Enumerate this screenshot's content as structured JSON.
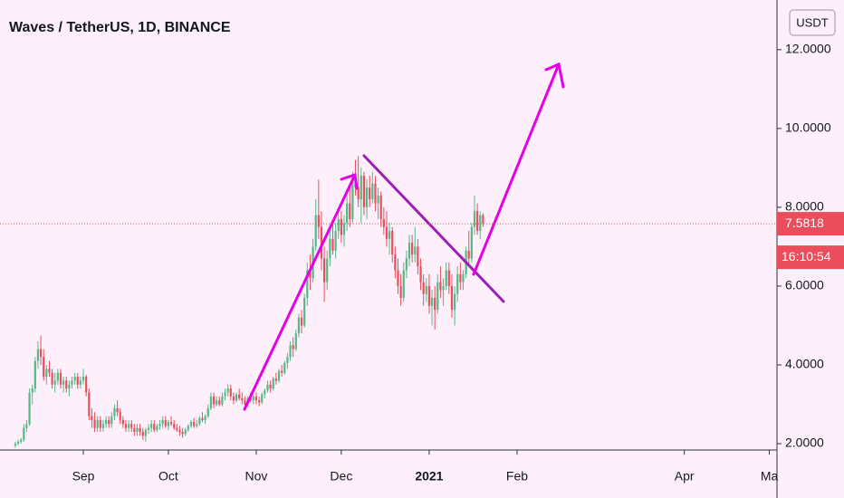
{
  "chart_data": {
    "type": "candlestick",
    "title": "Waves / TetherUS, 1D, BINANCE",
    "currency": "USDT",
    "last_price": 7.5818,
    "countdown": "16:10:54",
    "up_color": "#53b987",
    "down_color": "#eb4d5c",
    "xlim": [
      -5.4,
      268.7
    ],
    "xticks": [
      {
        "value": 24,
        "label": "Sep"
      },
      {
        "value": 54,
        "label": "Oct"
      },
      {
        "value": 85,
        "label": "Nov"
      },
      {
        "value": 115,
        "label": "Dec"
      },
      {
        "value": 146,
        "label": "2021"
      },
      {
        "value": 177,
        "label": "Feb"
      },
      {
        "value": 236,
        "label": "Apr"
      },
      {
        "value": 266,
        "label": "Ma"
      }
    ],
    "ylim": [
      1.84,
      13.26
    ],
    "yticks": [
      {
        "value": 2,
        "label": "2.0000"
      },
      {
        "value": 4,
        "label": "4.0000"
      },
      {
        "value": 6,
        "label": "6.0000"
      },
      {
        "value": 8,
        "label": "8.0000"
      },
      {
        "value": 10,
        "label": "10.0000"
      },
      {
        "value": 12,
        "label": "12.0000"
      }
    ],
    "candles": [
      [
        1.95,
        2.05,
        1.9,
        2.0
      ],
      [
        2.0,
        2.1,
        1.95,
        2.05
      ],
      [
        2.05,
        2.15,
        2.0,
        2.1
      ],
      [
        2.1,
        2.5,
        2.05,
        2.4
      ],
      [
        2.4,
        2.6,
        2.3,
        2.5
      ],
      [
        2.5,
        3.4,
        2.45,
        3.3
      ],
      [
        3.3,
        3.5,
        3.0,
        3.4
      ],
      [
        3.4,
        4.2,
        3.3,
        4.1
      ],
      [
        4.1,
        4.6,
        3.9,
        4.4
      ],
      [
        4.4,
        4.75,
        4.0,
        4.2
      ],
      [
        4.2,
        4.4,
        3.6,
        3.7
      ],
      [
        3.7,
        4.0,
        3.5,
        3.9
      ],
      [
        3.9,
        4.1,
        3.7,
        3.8
      ],
      [
        3.8,
        3.9,
        3.4,
        3.5
      ],
      [
        3.5,
        3.8,
        3.3,
        3.6
      ],
      [
        3.6,
        3.9,
        3.5,
        3.8
      ],
      [
        3.8,
        3.9,
        3.4,
        3.5
      ],
      [
        3.5,
        3.7,
        3.3,
        3.6
      ],
      [
        3.6,
        3.7,
        3.3,
        3.4
      ],
      [
        3.4,
        3.6,
        3.2,
        3.5
      ],
      [
        3.5,
        3.7,
        3.4,
        3.6
      ],
      [
        3.6,
        3.8,
        3.5,
        3.7
      ],
      [
        3.7,
        3.8,
        3.4,
        3.5
      ],
      [
        3.5,
        3.7,
        3.4,
        3.6
      ],
      [
        3.6,
        3.9,
        3.5,
        3.7
      ],
      [
        3.7,
        3.75,
        3.2,
        3.3
      ],
      [
        3.3,
        3.4,
        2.6,
        2.7
      ],
      [
        2.7,
        2.9,
        2.4,
        2.6
      ],
      [
        2.6,
        2.8,
        2.3,
        2.4
      ],
      [
        2.4,
        2.7,
        2.3,
        2.6
      ],
      [
        2.6,
        2.7,
        2.3,
        2.4
      ],
      [
        2.4,
        2.6,
        2.3,
        2.5
      ],
      [
        2.5,
        2.7,
        2.4,
        2.6
      ],
      [
        2.6,
        2.7,
        2.4,
        2.5
      ],
      [
        2.5,
        2.8,
        2.4,
        2.7
      ],
      [
        2.7,
        3.0,
        2.6,
        2.9
      ],
      [
        2.9,
        3.1,
        2.7,
        2.8
      ],
      [
        2.8,
        2.9,
        2.5,
        2.6
      ],
      [
        2.6,
        2.7,
        2.4,
        2.5
      ],
      [
        2.5,
        2.6,
        2.3,
        2.4
      ],
      [
        2.4,
        2.6,
        2.3,
        2.5
      ],
      [
        2.5,
        2.6,
        2.3,
        2.4
      ],
      [
        2.4,
        2.5,
        2.2,
        2.3
      ],
      [
        2.3,
        2.5,
        2.2,
        2.4
      ],
      [
        2.4,
        2.5,
        2.2,
        2.3
      ],
      [
        2.3,
        2.4,
        2.1,
        2.2
      ],
      [
        2.2,
        2.4,
        2.05,
        2.35
      ],
      [
        2.35,
        2.5,
        2.25,
        2.4
      ],
      [
        2.4,
        2.6,
        2.3,
        2.5
      ],
      [
        2.5,
        2.6,
        2.3,
        2.35
      ],
      [
        2.35,
        2.5,
        2.3,
        2.45
      ],
      [
        2.45,
        2.6,
        2.35,
        2.5
      ],
      [
        2.5,
        2.7,
        2.4,
        2.6
      ],
      [
        2.6,
        2.7,
        2.4,
        2.45
      ],
      [
        2.45,
        2.6,
        2.35,
        2.55
      ],
      [
        2.55,
        2.7,
        2.45,
        2.5
      ],
      [
        2.5,
        2.6,
        2.35,
        2.4
      ],
      [
        2.4,
        2.5,
        2.3,
        2.35
      ],
      [
        2.35,
        2.45,
        2.2,
        2.3
      ],
      [
        2.3,
        2.4,
        2.15,
        2.25
      ],
      [
        2.25,
        2.4,
        2.2,
        2.35
      ],
      [
        2.35,
        2.5,
        2.3,
        2.45
      ],
      [
        2.45,
        2.6,
        2.4,
        2.55
      ],
      [
        2.55,
        2.65,
        2.4,
        2.45
      ],
      [
        2.45,
        2.6,
        2.4,
        2.5
      ],
      [
        2.5,
        2.7,
        2.45,
        2.65
      ],
      [
        2.65,
        2.8,
        2.55,
        2.6
      ],
      [
        2.6,
        2.75,
        2.5,
        2.7
      ],
      [
        2.7,
        3.0,
        2.65,
        2.9
      ],
      [
        2.9,
        3.3,
        2.85,
        3.2
      ],
      [
        3.2,
        3.3,
        2.9,
        3.0
      ],
      [
        3.0,
        3.2,
        2.95,
        3.1
      ],
      [
        3.1,
        3.2,
        2.95,
        3.0
      ],
      [
        3.0,
        3.3,
        2.95,
        3.2
      ],
      [
        3.2,
        3.4,
        3.1,
        3.3
      ],
      [
        3.3,
        3.5,
        3.2,
        3.4
      ],
      [
        3.4,
        3.5,
        3.1,
        3.2
      ],
      [
        3.2,
        3.3,
        3.0,
        3.1
      ],
      [
        3.1,
        3.3,
        3.05,
        3.25
      ],
      [
        3.25,
        3.4,
        3.1,
        3.15
      ],
      [
        3.15,
        3.3,
        3.0,
        3.1
      ],
      [
        3.1,
        3.2,
        2.9,
        3.0
      ],
      [
        3.0,
        3.2,
        2.95,
        3.15
      ],
      [
        3.15,
        3.3,
        3.05,
        3.1
      ],
      [
        3.1,
        3.25,
        3.0,
        3.2
      ],
      [
        3.2,
        3.3,
        3.0,
        3.1
      ],
      [
        3.1,
        3.2,
        2.95,
        3.05
      ],
      [
        3.05,
        3.3,
        3.0,
        3.25
      ],
      [
        3.25,
        3.4,
        3.15,
        3.35
      ],
      [
        3.35,
        3.6,
        3.3,
        3.5
      ],
      [
        3.5,
        3.6,
        3.3,
        3.4
      ],
      [
        3.4,
        3.7,
        3.35,
        3.65
      ],
      [
        3.65,
        3.8,
        3.5,
        3.6
      ],
      [
        3.6,
        3.9,
        3.55,
        3.85
      ],
      [
        3.85,
        4.0,
        3.7,
        3.8
      ],
      [
        3.8,
        4.1,
        3.75,
        4.05
      ],
      [
        4.05,
        4.3,
        3.9,
        4.2
      ],
      [
        4.2,
        4.6,
        4.1,
        4.5
      ],
      [
        4.5,
        4.7,
        4.2,
        4.4
      ],
      [
        4.4,
        4.9,
        4.35,
        4.8
      ],
      [
        4.8,
        5.3,
        4.7,
        5.2
      ],
      [
        5.2,
        5.4,
        4.8,
        5.0
      ],
      [
        5.0,
        5.8,
        4.95,
        5.7
      ],
      [
        5.7,
        6.6,
        5.5,
        6.4
      ],
      [
        6.4,
        6.8,
        5.9,
        6.2
      ],
      [
        6.2,
        7.2,
        6.1,
        7.0
      ],
      [
        7.0,
        8.2,
        6.9,
        7.8
      ],
      [
        7.8,
        8.7,
        7.2,
        7.5
      ],
      [
        7.5,
        7.9,
        6.4,
        6.7
      ],
      [
        6.7,
        7.0,
        5.6,
        6.1
      ],
      [
        6.1,
        6.9,
        5.9,
        6.7
      ],
      [
        6.7,
        7.4,
        6.5,
        7.2
      ],
      [
        7.2,
        7.6,
        6.8,
        6.9
      ],
      [
        6.9,
        7.6,
        6.7,
        7.4
      ],
      [
        7.4,
        7.9,
        7.2,
        7.7
      ],
      [
        7.7,
        7.9,
        7.1,
        7.3
      ],
      [
        7.3,
        7.8,
        7.0,
        7.6
      ],
      [
        7.6,
        8.3,
        7.4,
        8.1
      ],
      [
        8.1,
        8.6,
        7.5,
        7.7
      ],
      [
        7.7,
        8.9,
        7.6,
        8.7
      ],
      [
        8.7,
        9.2,
        8.3,
        8.5
      ],
      [
        8.5,
        9.3,
        8.0,
        8.2
      ],
      [
        8.2,
        9.0,
        7.6,
        8.8
      ],
      [
        8.8,
        8.9,
        7.8,
        8.0
      ],
      [
        8.0,
        8.7,
        7.7,
        8.5
      ],
      [
        8.5,
        8.8,
        8.0,
        8.2
      ],
      [
        8.2,
        8.9,
        8.1,
        8.6
      ],
      [
        8.6,
        8.8,
        7.9,
        8.1
      ],
      [
        8.1,
        8.5,
        7.7,
        8.3
      ],
      [
        8.3,
        8.4,
        7.5,
        7.7
      ],
      [
        7.7,
        8.0,
        7.3,
        7.5
      ],
      [
        7.5,
        7.9,
        7.0,
        7.2
      ],
      [
        7.2,
        7.6,
        6.8,
        7.4
      ],
      [
        7.4,
        7.5,
        6.6,
        6.8
      ],
      [
        6.8,
        7.0,
        6.2,
        6.4
      ],
      [
        6.4,
        6.7,
        5.8,
        6.0
      ],
      [
        6.0,
        6.3,
        5.5,
        5.7
      ],
      [
        5.7,
        6.6,
        5.6,
        6.4
      ],
      [
        6.4,
        6.9,
        6.2,
        6.7
      ],
      [
        6.7,
        7.3,
        6.5,
        7.1
      ],
      [
        7.1,
        7.3,
        6.6,
        6.8
      ],
      [
        6.8,
        7.5,
        6.6,
        7.0
      ],
      [
        7.0,
        7.2,
        6.3,
        6.5
      ],
      [
        6.5,
        6.7,
        5.9,
        6.1
      ],
      [
        6.1,
        6.3,
        5.5,
        5.8
      ],
      [
        5.8,
        6.2,
        5.6,
        6.0
      ],
      [
        6.0,
        6.3,
        5.3,
        5.5
      ],
      [
        5.5,
        5.9,
        5.0,
        5.7
      ],
      [
        5.7,
        6.0,
        4.9,
        5.4
      ],
      [
        5.4,
        6.3,
        5.3,
        6.1
      ],
      [
        6.1,
        6.5,
        5.7,
        5.9
      ],
      [
        5.9,
        6.2,
        5.5,
        6.0
      ],
      [
        6.0,
        6.6,
        5.9,
        6.4
      ],
      [
        6.4,
        6.6,
        5.8,
        6.0
      ],
      [
        6.0,
        6.3,
        5.2,
        5.4
      ],
      [
        5.4,
        6.0,
        5.0,
        5.8
      ],
      [
        5.8,
        6.5,
        5.6,
        6.3
      ],
      [
        6.3,
        6.6,
        5.9,
        6.1
      ],
      [
        6.1,
        6.4,
        5.9,
        6.3
      ],
      [
        6.3,
        7.0,
        6.2,
        6.9
      ],
      [
        6.9,
        7.4,
        6.5,
        6.7
      ],
      [
        6.7,
        7.6,
        6.6,
        7.5
      ],
      [
        7.5,
        8.3,
        7.3,
        7.9
      ],
      [
        7.9,
        8.1,
        7.3,
        7.4
      ],
      [
        7.4,
        7.9,
        7.2,
        7.8
      ],
      [
        7.8,
        7.85,
        7.5,
        7.5818
      ]
    ]
  }
}
